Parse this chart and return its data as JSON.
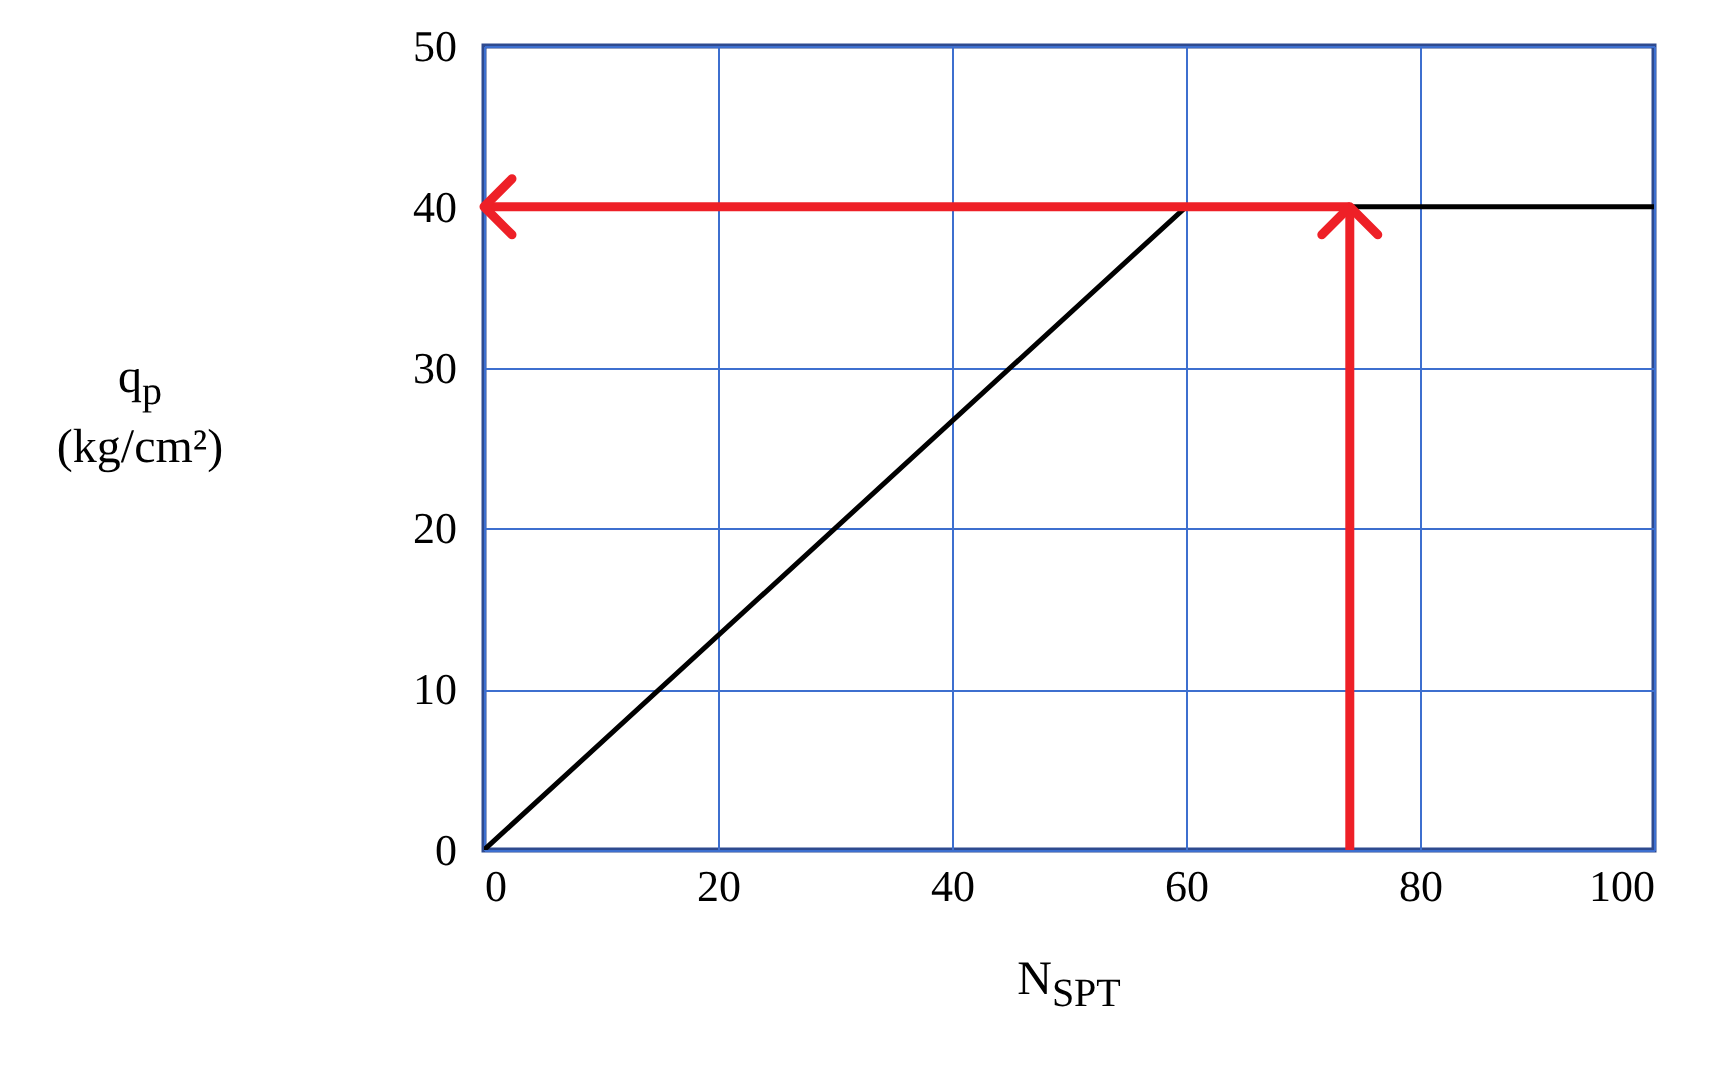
{
  "chart_data": {
    "type": "line",
    "xlabel": "N$_{SPT}$",
    "ylabel": "q$_{p}$\n(kg/cm²)",
    "series": [
      {
        "color": "#000000",
        "x": [
          0,
          60,
          100
        ],
        "values": [
          0,
          40,
          40
        ]
      }
    ],
    "ref_lines": [
      {
        "axis": "x",
        "value": 74,
        "color": "#ee2027"
      },
      {
        "axis": "y",
        "value": 40,
        "color": "#ee2027"
      }
    ],
    "xlim": [
      0,
      100
    ],
    "xticks": [
      0,
      20,
      40,
      60,
      80,
      100
    ],
    "ylim": [
      0,
      50
    ],
    "yticks": [
      0,
      10,
      20,
      30,
      40,
      50
    ],
    "grid": true,
    "marker": "none",
    "line_style": "solid"
  }
}
